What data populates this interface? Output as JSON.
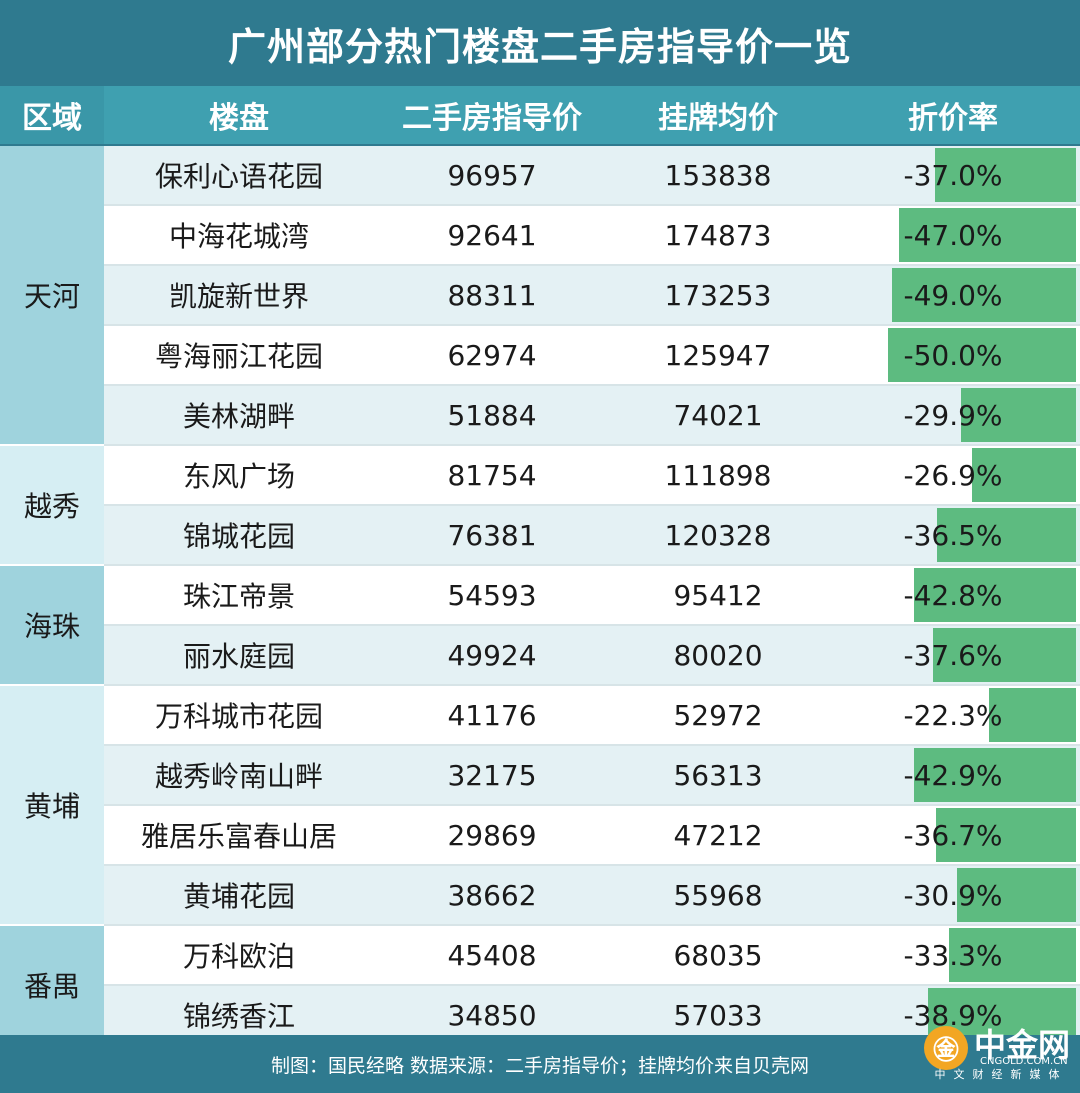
{
  "title": "广州部分热门楼盘二手房指导价一览",
  "headers": {
    "region": "区域",
    "name": "楼盘",
    "guide": "二手房指导价",
    "list": "挂牌均价",
    "rate": "折价率"
  },
  "colors": {
    "title_bg": "#2f7a8f",
    "header_bg": "#3fa0b0",
    "bar": "#5dbb80",
    "row_light": "#e4f1f4",
    "row_white": "#ffffff",
    "region_dark": "#9fd3dd",
    "region_light": "#d6eef3"
  },
  "regions": [
    {
      "name": "天河",
      "rows": 5
    },
    {
      "name": "越秀",
      "rows": 2
    },
    {
      "name": "海珠",
      "rows": 2
    },
    {
      "name": "黄埔",
      "rows": 4
    },
    {
      "name": "番禺",
      "rows": 2
    }
  ],
  "chart_data": {
    "type": "table",
    "columns": [
      "区域",
      "楼盘",
      "二手房指导价",
      "挂牌均价",
      "折价率"
    ],
    "rows": [
      {
        "region": "天河",
        "name": "保利心语花园",
        "guide": "96957",
        "list": "153838",
        "rate": "-37.0%",
        "value": -37.0
      },
      {
        "region": "天河",
        "name": "中海花城湾",
        "guide": "92641",
        "list": "174873",
        "rate": "-47.0%",
        "value": -47.0
      },
      {
        "region": "天河",
        "name": "凯旋新世界",
        "guide": "88311",
        "list": "173253",
        "rate": "-49.0%",
        "value": -49.0
      },
      {
        "region": "天河",
        "name": "粤海丽江花园",
        "guide": "62974",
        "list": "125947",
        "rate": "-50.0%",
        "value": -50.0
      },
      {
        "region": "天河",
        "name": "美林湖畔",
        "guide": "51884",
        "list": "74021",
        "rate": "-29.9%",
        "value": -29.9
      },
      {
        "region": "越秀",
        "name": "东风广场",
        "guide": "81754",
        "list": "111898",
        "rate": "-26.9%",
        "value": -26.9
      },
      {
        "region": "越秀",
        "name": "锦城花园",
        "guide": "76381",
        "list": "120328",
        "rate": "-36.5%",
        "value": -36.5
      },
      {
        "region": "海珠",
        "name": "珠江帝景",
        "guide": "54593",
        "list": "95412",
        "rate": "-42.8%",
        "value": -42.8
      },
      {
        "region": "海珠",
        "name": "丽水庭园",
        "guide": "49924",
        "list": "80020",
        "rate": "-37.6%",
        "value": -37.6
      },
      {
        "region": "黄埔",
        "name": "万科城市花园",
        "guide": "41176",
        "list": "52972",
        "rate": "-22.3%",
        "value": -22.3
      },
      {
        "region": "黄埔",
        "name": "越秀岭南山畔",
        "guide": "32175",
        "list": "56313",
        "rate": "-42.9%",
        "value": -42.9
      },
      {
        "region": "黄埔",
        "name": "雅居乐富春山居",
        "guide": "29869",
        "list": "47212",
        "rate": "-36.7%",
        "value": -36.7
      },
      {
        "region": "黄埔",
        "name": "黄埔花园",
        "guide": "38662",
        "list": "55968",
        "rate": "-30.9%",
        "value": -30.9
      },
      {
        "region": "番禺",
        "name": "万科欧泊",
        "guide": "45408",
        "list": "68035",
        "rate": "-33.3%",
        "value": -33.3
      },
      {
        "region": "番禺",
        "name": "锦绣香江",
        "guide": "34850",
        "list": "57033",
        "rate": "-38.9%",
        "value": -38.9
      }
    ]
  },
  "footer": "制图：国民经略  数据来源：二手房指导价；挂牌均价来自贝壳网",
  "logo": {
    "name": "中金网",
    "url": "CNGOLD.COM.CN",
    "tagline": "中文财经新媒体",
    "icon": "cngold-logo-icon"
  }
}
